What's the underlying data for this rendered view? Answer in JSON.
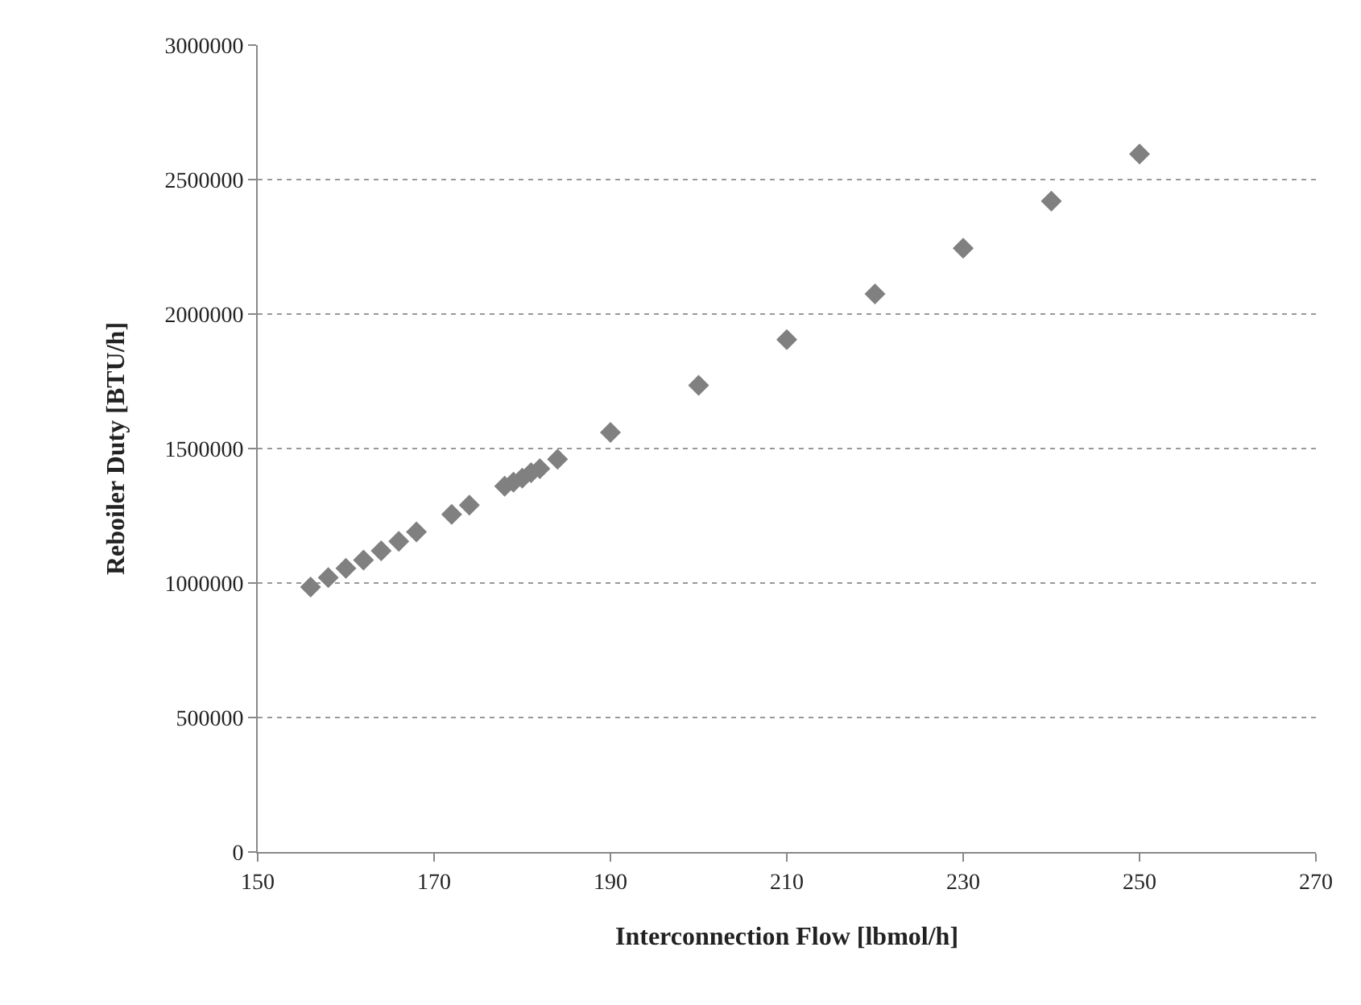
{
  "chart_data": {
    "type": "scatter",
    "xlabel": "Interconnection Flow [lbmol/h]",
    "ylabel": "Reboiler Duty [BTU/h]",
    "x": [
      156,
      158,
      160,
      162,
      164,
      166,
      168,
      172,
      174,
      178,
      179,
      180,
      181,
      182,
      184,
      190,
      200,
      210,
      220,
      230,
      240,
      250
    ],
    "series": [
      {
        "color": "#808080",
        "values": [
          985000,
          1020000,
          1055000,
          1085000,
          1120000,
          1155000,
          1190000,
          1255000,
          1290000,
          1360000,
          1375000,
          1390000,
          1410000,
          1425000,
          1460000,
          1560000,
          1735000,
          1905000,
          2075000,
          2245000,
          2420000,
          2595000
        ]
      }
    ],
    "xlim": [
      150,
      270
    ],
    "xticks": [
      150,
      170,
      190,
      210,
      230,
      250,
      270
    ],
    "ylim": [
      0,
      3000000
    ],
    "yticks": [
      0,
      500000,
      1000000,
      1500000,
      2000000,
      2500000,
      3000000
    ],
    "grid": "y",
    "marker": "diamond"
  }
}
